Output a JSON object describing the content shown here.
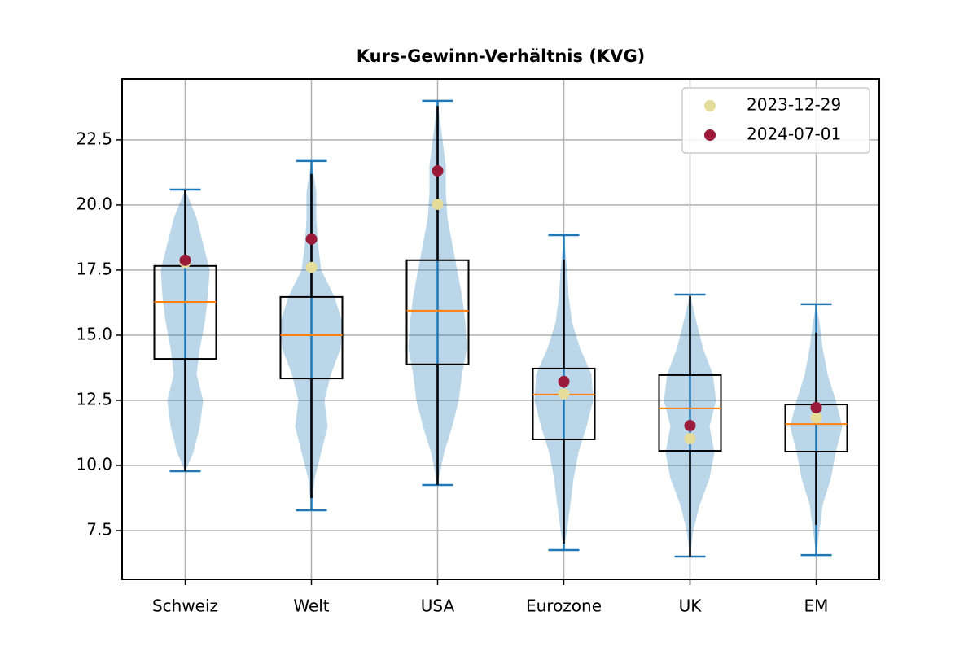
{
  "chart_data": {
    "type": "violin",
    "title": "Kurs-Gewinn-Verhältnis (KVG)",
    "categories": [
      "Schweiz",
      "Welt",
      "USA",
      "Eurozone",
      "UK",
      "EM"
    ],
    "ylim": [
      5.625,
      24.84
    ],
    "yticks": [
      7.5,
      {
        "value": 10,
        "label": "10.0"
      },
      12.5,
      {
        "value": 15,
        "label": "15.0"
      },
      17.5,
      {
        "value": 20,
        "label": "20.0"
      },
      22.5
    ],
    "grid": true,
    "violin_color": "#1f77b4",
    "box_color": "#000000",
    "median_color": "#ff7f0e",
    "legend": "upper right",
    "violins": [
      {
        "min": 9.78,
        "max": 20.59,
        "density_y": [
          9.78,
          10.5,
          11.5,
          12.5,
          13.5,
          14.5,
          15.5,
          16.5,
          17.5,
          18.5,
          19.5,
          20.59
        ],
        "density": [
          0,
          0.25,
          0.45,
          0.55,
          0.35,
          0.45,
          0.6,
          0.7,
          0.75,
          0.55,
          0.35,
          0
        ]
      },
      {
        "min": 8.28,
        "max": 21.69,
        "density_y": [
          8.28,
          9.5,
          10.5,
          11.5,
          12.5,
          13.5,
          14.5,
          15.5,
          16.5,
          17.5,
          18.5,
          19.5,
          20.5,
          21.69
        ],
        "density": [
          0,
          0.1,
          0.3,
          0.5,
          0.4,
          0.6,
          0.9,
          0.95,
          0.7,
          0.3,
          0.2,
          0.15,
          0.15,
          0
        ]
      },
      {
        "min": 9.25,
        "max": 24.0,
        "density_y": [
          9.25,
          10.5,
          11.5,
          12.5,
          13.5,
          14.5,
          15.5,
          16.5,
          17.5,
          18.5,
          19.5,
          20.5,
          21.5,
          22.5,
          24.0
        ],
        "density": [
          0,
          0.2,
          0.45,
          0.65,
          0.75,
          0.9,
          0.85,
          0.75,
          0.6,
          0.45,
          0.3,
          0.25,
          0.25,
          0.15,
          0
        ]
      },
      {
        "min": 6.75,
        "max": 18.84,
        "density_y": [
          6.75,
          7.5,
          8.5,
          9.5,
          10.5,
          11.5,
          12.5,
          13.5,
          14.5,
          15.5,
          16.5,
          17.5,
          18.84
        ],
        "density": [
          0,
          0.1,
          0.2,
          0.3,
          0.45,
          0.7,
          0.9,
          0.85,
          0.5,
          0.25,
          0.15,
          0.1,
          0
        ]
      },
      {
        "min": 6.5,
        "max": 16.56,
        "density_y": [
          6.5,
          7.5,
          8.5,
          9.5,
          10.5,
          11.5,
          12.5,
          13.5,
          14.5,
          15.5,
          16.56
        ],
        "density": [
          0,
          0.1,
          0.3,
          0.6,
          0.75,
          0.6,
          0.8,
          0.7,
          0.4,
          0.2,
          0
        ]
      },
      {
        "min": 6.56,
        "max": 16.19,
        "density_y": [
          6.56,
          7.5,
          8.5,
          9.5,
          10.5,
          11.5,
          12.5,
          13.5,
          14.5,
          15.5,
          16.19
        ],
        "density": [
          0,
          0.1,
          0.2,
          0.45,
          0.6,
          0.8,
          0.6,
          0.35,
          0.2,
          0.1,
          0
        ]
      }
    ],
    "boxes": [
      {
        "whisker_low": 9.78,
        "q1": 14.09,
        "median": 16.28,
        "q3": 17.66,
        "whisker_high": 20.59
      },
      {
        "whisker_low": 8.75,
        "q1": 13.34,
        "median": 15.0,
        "q3": 16.47,
        "whisker_high": 21.19
      },
      {
        "whisker_low": 9.25,
        "q1": 13.88,
        "median": 15.94,
        "q3": 17.88,
        "whisker_high": 23.8
      },
      {
        "whisker_low": 7.0,
        "q1": 11.0,
        "median": 12.72,
        "q3": 13.72,
        "whisker_high": 17.9
      },
      {
        "whisker_low": 6.5,
        "q1": 10.56,
        "median": 12.19,
        "q3": 13.47,
        "whisker_high": 16.5
      },
      {
        "whisker_low": 7.72,
        "q1": 10.53,
        "median": 11.59,
        "q3": 12.34,
        "whisker_high": 15.1
      }
    ],
    "series": [
      {
        "name": "2023-12-29",
        "color": "#e6dc9a",
        "values": [
          17.8,
          17.6,
          20.03,
          12.75,
          11.03,
          11.84
        ]
      },
      {
        "name": "2024-07-01",
        "color": "#9b1a3a",
        "values": [
          17.88,
          18.69,
          21.31,
          13.22,
          11.53,
          12.22
        ]
      }
    ]
  }
}
